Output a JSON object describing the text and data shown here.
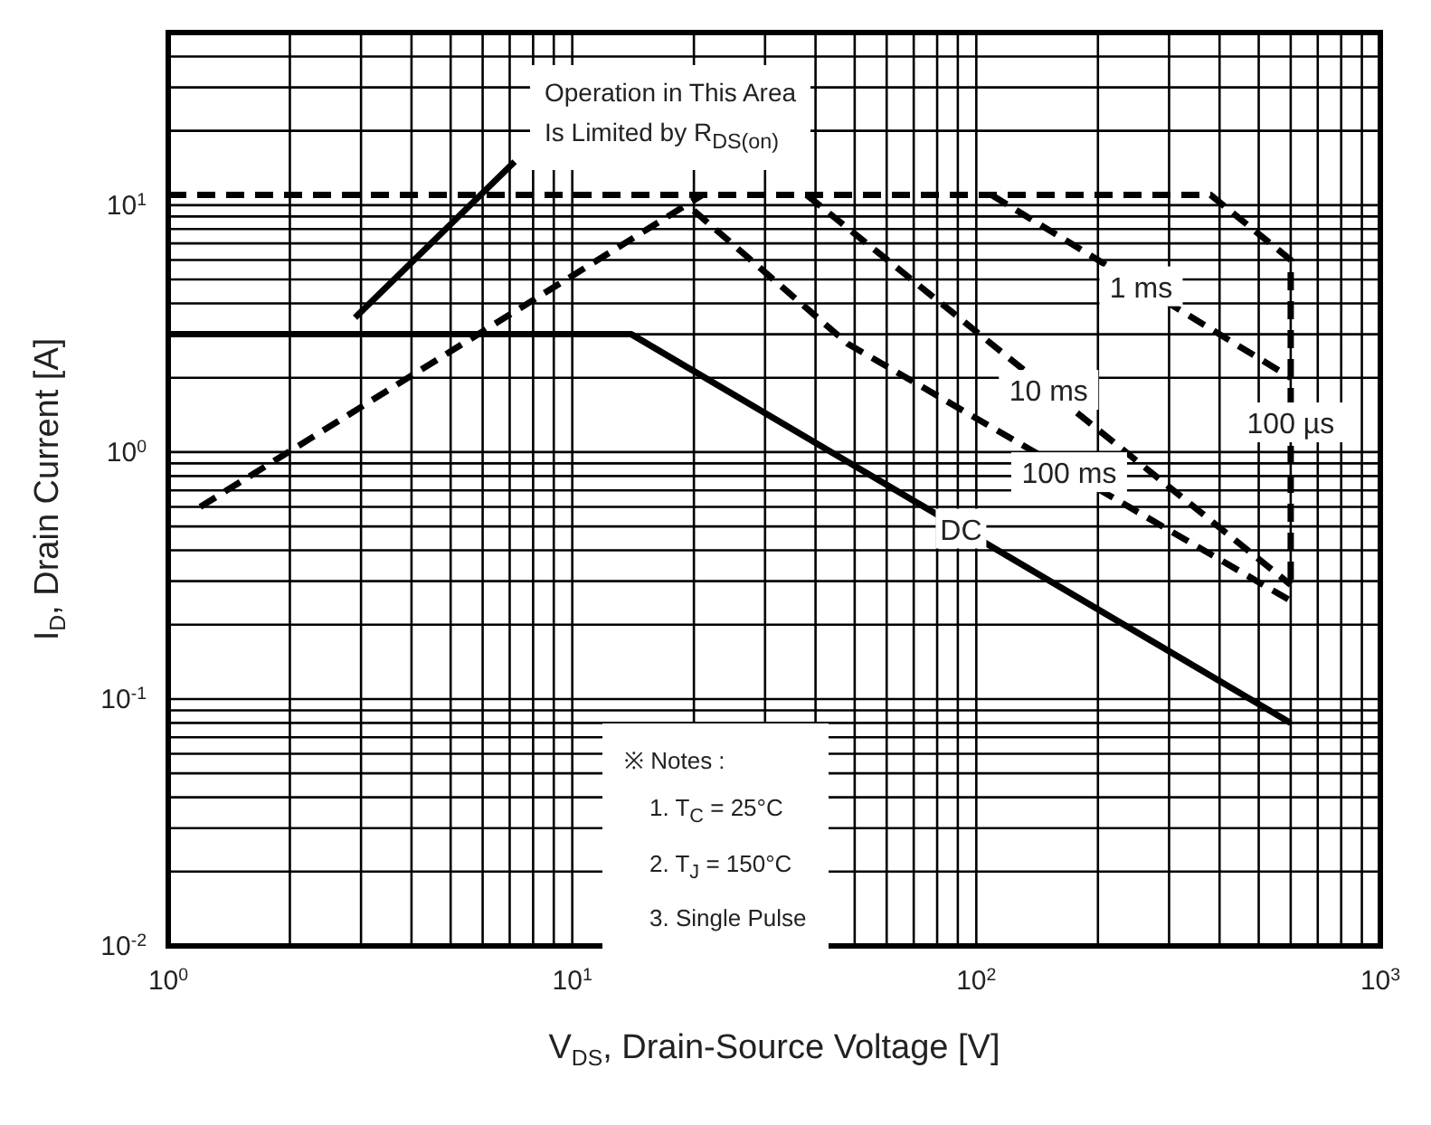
{
  "chart_data": {
    "type": "line",
    "xlabel": "V$_{DS}$, Drain-Source Voltage [V]",
    "ylabel": "I$_{D}$, Drain Current [A]",
    "log": "xy",
    "grid": true,
    "marker": "none",
    "xlim": [
      1,
      1000
    ],
    "ylim": [
      0.01,
      50
    ],
    "xticks": [
      {
        "value": 1,
        "label": "10$^{0}$"
      },
      {
        "value": 2,
        "label": null
      },
      {
        "value": 3,
        "label": null
      },
      {
        "value": 4,
        "label": null
      },
      {
        "value": 5,
        "label": null
      },
      {
        "value": 6,
        "label": null
      },
      {
        "value": 7,
        "label": null
      },
      {
        "value": 8,
        "label": null
      },
      {
        "value": 9,
        "label": null
      },
      {
        "value": 10,
        "label": "10$^{1}$"
      },
      {
        "value": 20,
        "label": null
      },
      {
        "value": 30,
        "label": null
      },
      {
        "value": 40,
        "label": null
      },
      {
        "value": 50,
        "label": null
      },
      {
        "value": 60,
        "label": null
      },
      {
        "value": 70,
        "label": null
      },
      {
        "value": 80,
        "label": null
      },
      {
        "value": 90,
        "label": null
      },
      {
        "value": 100,
        "label": "10$^{2}$"
      },
      {
        "value": 200,
        "label": null
      },
      {
        "value": 300,
        "label": null
      },
      {
        "value": 400,
        "label": null
      },
      {
        "value": 500,
        "label": null
      },
      {
        "value": 600,
        "label": null
      },
      {
        "value": 700,
        "label": null
      },
      {
        "value": 800,
        "label": null
      },
      {
        "value": 900,
        "label": null
      },
      {
        "value": 1000,
        "label": "10$^{3}$"
      }
    ],
    "yticks": [
      {
        "value": 0.01,
        "label": "10$^{-2}$"
      },
      {
        "value": 0.02,
        "label": null
      },
      {
        "value": 0.03,
        "label": null
      },
      {
        "value": 0.04,
        "label": null
      },
      {
        "value": 0.05,
        "label": null
      },
      {
        "value": 0.06,
        "label": null
      },
      {
        "value": 0.07,
        "label": null
      },
      {
        "value": 0.08,
        "label": null
      },
      {
        "value": 0.09,
        "label": null
      },
      {
        "value": 0.1,
        "label": "10$^{-1}$"
      },
      {
        "value": 0.2,
        "label": null
      },
      {
        "value": 0.3,
        "label": null
      },
      {
        "value": 0.4,
        "label": null
      },
      {
        "value": 0.5,
        "label": null
      },
      {
        "value": 0.6,
        "label": null
      },
      {
        "value": 0.7,
        "label": null
      },
      {
        "value": 0.8,
        "label": null
      },
      {
        "value": 0.9,
        "label": null
      },
      {
        "value": 1,
        "label": "10$^{0}$"
      },
      {
        "value": 2,
        "label": null
      },
      {
        "value": 3,
        "label": null
      },
      {
        "value": 4,
        "label": null
      },
      {
        "value": 5,
        "label": null
      },
      {
        "value": 6,
        "label": null
      },
      {
        "value": 7,
        "label": null
      },
      {
        "value": 8,
        "label": null
      },
      {
        "value": 9,
        "label": null
      },
      {
        "value": 10,
        "label": "10$^{1}$"
      },
      {
        "value": 20,
        "label": null
      },
      {
        "value": 30,
        "label": null
      },
      {
        "value": 40,
        "label": null
      }
    ],
    "series": [
      {
        "color": "#000000",
        "line_style": "solid",
        "x": [
          2.9,
          7.2
        ],
        "values": [
          3.5,
          15
        ]
      },
      {
        "color": "#000000",
        "line_style": "dashed",
        "x": [
          1.2,
          21
        ],
        "values": [
          0.6,
          11
        ]
      },
      {
        "name": "100 µs",
        "color": "#000000",
        "line_style": "dashed",
        "x": [
          1,
          380,
          600,
          600
        ],
        "values": [
          11,
          11,
          6,
          0.29
        ]
      },
      {
        "name": "1 ms",
        "color": "#000000",
        "line_style": "dashed",
        "x": [
          109,
          600
        ],
        "values": [
          11,
          2
        ]
      },
      {
        "name": "10 ms",
        "color": "#000000",
        "line_style": "dashed",
        "x": [
          38,
          600
        ],
        "values": [
          11,
          0.29
        ]
      },
      {
        "name": "100 ms",
        "color": "#000000",
        "line_style": "dashed",
        "x": [
          20,
          48,
          600
        ],
        "values": [
          9.5,
          2.75,
          0.25
        ]
      },
      {
        "name": "DC",
        "color": "#000000",
        "line_style": "solid",
        "x": [
          1,
          14,
          600
        ],
        "values": [
          3,
          3,
          0.08
        ]
      }
    ],
    "annotations": [
      "Operation in This Area",
      "Is Limited by R$_{DS(on)}$",
      "※ Notes :",
      "1. T$_{C}$ = 25°C",
      "2. T$_{J}$ = 150°C",
      "3. Single Pulse"
    ]
  }
}
